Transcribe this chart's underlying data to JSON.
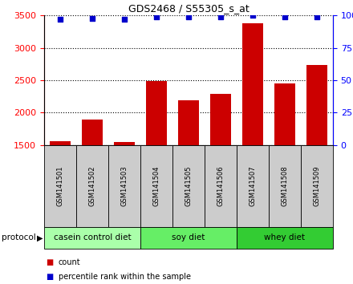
{
  "title": "GDS2468 / S55305_s_at",
  "samples": [
    "GSM141501",
    "GSM141502",
    "GSM141503",
    "GSM141504",
    "GSM141505",
    "GSM141506",
    "GSM141507",
    "GSM141508",
    "GSM141509"
  ],
  "counts": [
    1560,
    1890,
    1540,
    2490,
    2195,
    2285,
    3380,
    2455,
    2730
  ],
  "percentile_ranks": [
    97,
    98,
    97,
    99,
    99,
    99,
    100,
    99,
    99
  ],
  "ylim_left": [
    1500,
    3500
  ],
  "ylim_right": [
    0,
    100
  ],
  "yticks_left": [
    1500,
    2000,
    2500,
    3000,
    3500
  ],
  "yticks_right": [
    0,
    25,
    50,
    75,
    100
  ],
  "groups": [
    {
      "label": "casein control diet",
      "start": 0,
      "end": 3,
      "color": "#aaffaa"
    },
    {
      "label": "soy diet",
      "start": 3,
      "end": 6,
      "color": "#66ee66"
    },
    {
      "label": "whey diet",
      "start": 6,
      "end": 9,
      "color": "#33cc33"
    }
  ],
  "bar_color": "#cc0000",
  "dot_color": "#0000cc",
  "protocol_label": "protocol",
  "legend_count_label": "count",
  "legend_prank_label": "percentile rank within the sample",
  "sample_box_color": "#cccccc",
  "grid_color": "#000000",
  "title_fontsize": 9,
  "tick_fontsize": 8,
  "sample_fontsize": 6,
  "group_fontsize": 7.5
}
